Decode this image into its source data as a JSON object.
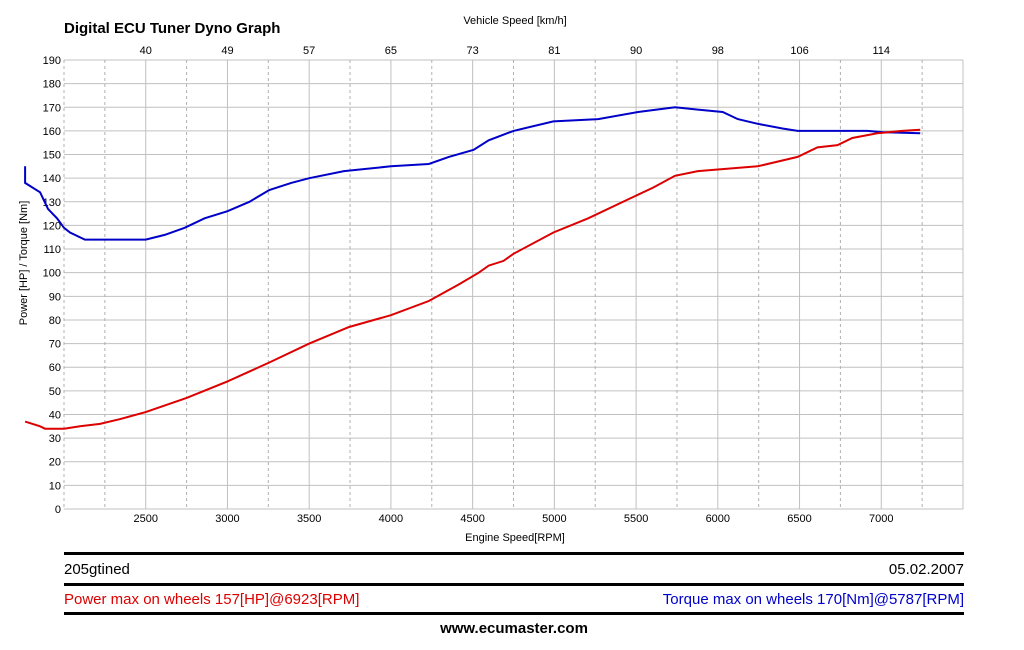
{
  "chart_data": {
    "type": "line",
    "title": "Digital ECU Tuner Dyno Graph",
    "xlabel": "Engine Speed[RPM]",
    "ylabel": "Power [HP] / Torque [Nm]",
    "x2label": "Vehicle Speed [km/h]",
    "xlim": [
      2000,
      7500
    ],
    "ylim": [
      0,
      190
    ],
    "grid": true,
    "x_ticks": [
      2500,
      3000,
      3500,
      4000,
      4500,
      5000,
      5500,
      6000,
      6500,
      7000
    ],
    "y_ticks": [
      0,
      10,
      20,
      30,
      40,
      50,
      60,
      70,
      80,
      90,
      100,
      110,
      120,
      130,
      140,
      150,
      160,
      170,
      180,
      190
    ],
    "x2_ticks": [
      {
        "rpm": 2500,
        "label": "40"
      },
      {
        "rpm": 3000,
        "label": "49"
      },
      {
        "rpm": 3500,
        "label": "57"
      },
      {
        "rpm": 4000,
        "label": "65"
      },
      {
        "rpm": 4500,
        "label": "73"
      },
      {
        "rpm": 5000,
        "label": "81"
      },
      {
        "rpm": 5500,
        "label": "90"
      },
      {
        "rpm": 6000,
        "label": "98"
      },
      {
        "rpm": 6500,
        "label": "106"
      },
      {
        "rpm": 7000,
        "label": "114"
      }
    ],
    "series": [
      {
        "name": "Torque [Nm]",
        "color": "#0000c8",
        "x": [
          1762,
          1762,
          1854,
          1902,
          1957,
          2000,
          2037,
          2128,
          2280,
          2500,
          2616,
          2738,
          2860,
          3000,
          3134,
          3256,
          3390,
          3500,
          3713,
          4000,
          4232,
          4354,
          4506,
          4598,
          4750,
          4994,
          5268,
          5512,
          5738,
          5878,
          6030,
          6122,
          6244,
          6396,
          6488,
          6915,
          7006,
          7238
        ],
        "y": [
          145,
          138,
          134,
          127,
          123,
          119,
          117,
          114,
          114,
          114,
          116,
          119,
          123,
          126,
          130,
          135,
          138,
          140,
          143,
          145,
          146,
          149,
          152,
          156,
          160,
          164,
          165,
          168,
          170,
          169,
          168,
          165,
          163,
          161,
          160,
          160,
          159.5,
          159
        ]
      },
      {
        "name": "Power [HP]",
        "color": "#dc0000",
        "x": [
          1762,
          1854,
          1884,
          2000,
          2098,
          2220,
          2341,
          2500,
          2750,
          3000,
          3256,
          3500,
          3744,
          4000,
          4232,
          4415,
          4537,
          4598,
          4689,
          4750,
          4994,
          5207,
          5451,
          5604,
          5738,
          5878,
          6244,
          6488,
          6610,
          6732,
          6823,
          6976,
          7128,
          7238
        ],
        "y": [
          37,
          35,
          34,
          34,
          35,
          36,
          38,
          41,
          47,
          54,
          62,
          70,
          77,
          82,
          88,
          95,
          100,
          103,
          105,
          108,
          117,
          123,
          131,
          136,
          141,
          143,
          145,
          149,
          153,
          154,
          157,
          159,
          160,
          160.5
        ]
      }
    ]
  },
  "footer": {
    "name": "205gtined",
    "date": "05.02.2007",
    "power_max": "Power max on wheels 157[HP]@6923[RPM]",
    "torque_max": "Torque max on wheels 170[Nm]@5787[RPM]",
    "website": "www.ecumaster.com"
  }
}
